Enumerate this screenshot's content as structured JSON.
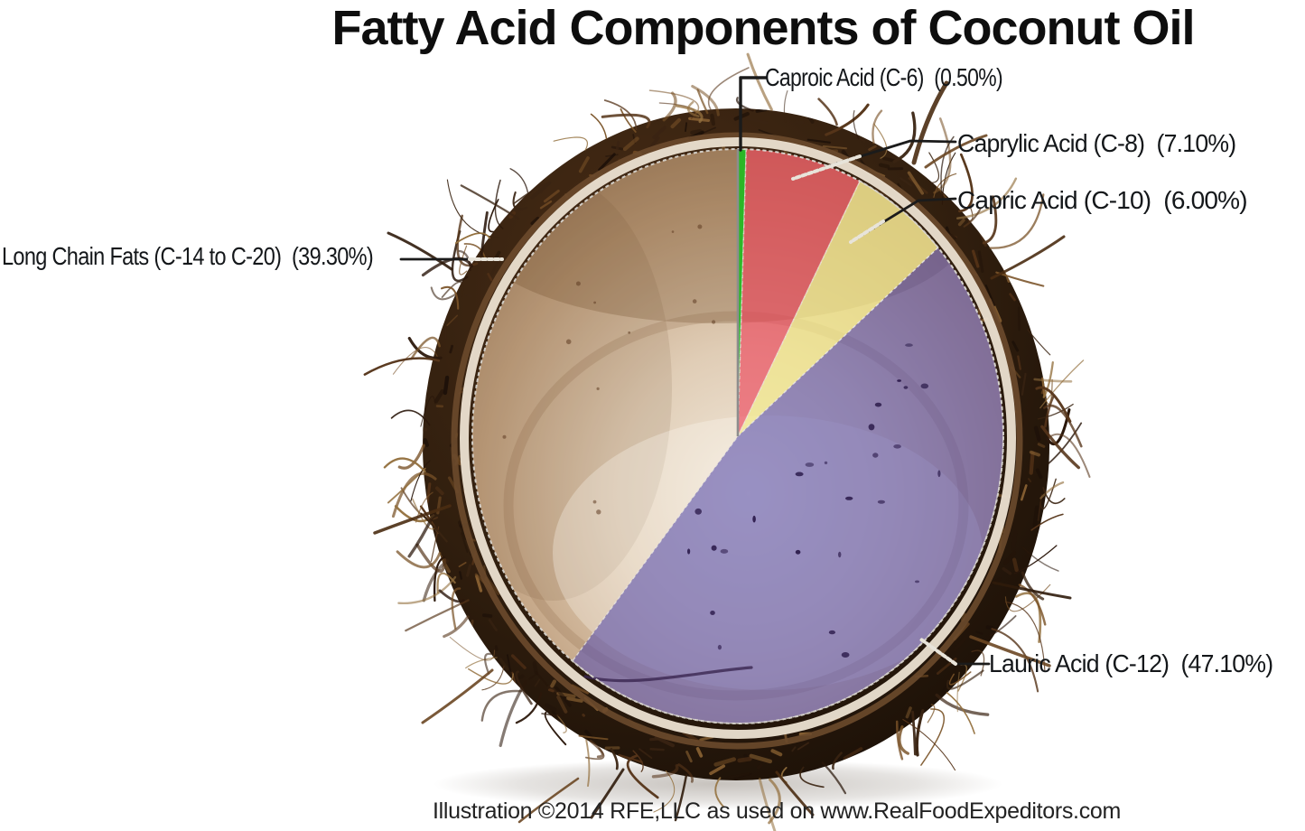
{
  "title": "Fatty Acid Components of Coconut Oil",
  "caption": "Illustration ©2014 RFE,LLC as used on www.RealFoodExpeditors.com",
  "labels": {
    "caproic": "Caproic Acid (C-6)  (0.50%)",
    "caprylic": "Caprylic Acid (C-8)  (7.10%)",
    "capric": "Capric Acid (C-10)  (6.00%)",
    "long_chain": "Long Chain Fats (C-14 to C-20)  (39.30%)",
    "lauric": "Lauric Acid (C-12)  (47.10%)"
  },
  "chart_data": {
    "type": "pie",
    "title": "Fatty Acid Components of Coconut Oil",
    "start_angle_deg": 0,
    "direction": "clockwise",
    "background": "photo of a halved coconut; pie slices are tinted overlays on the flesh",
    "slices": [
      {
        "key": "caproic",
        "name": "Caproic Acid",
        "carbons": "C-6",
        "percent": 0.5,
        "color": "#22bb22"
      },
      {
        "key": "caprylic",
        "name": "Caprylic Acid",
        "carbons": "C-8",
        "percent": 7.1,
        "color": "#ee4258"
      },
      {
        "key": "capric",
        "name": "Capric Acid",
        "carbons": "C-10",
        "percent": 6.0,
        "color": "#f2ea8e"
      },
      {
        "key": "lauric",
        "name": "Lauric Acid",
        "carbons": "C-12",
        "percent": 47.1,
        "color": "#564ead"
      },
      {
        "key": "long_chain",
        "name": "Long Chain Fats",
        "carbons": "C-14 to C-20",
        "percent": 39.3,
        "color": "#c9ab8c"
      }
    ],
    "colors": {
      "husk": "#2c1a0c",
      "shell_ring": "#ece2d2",
      "flesh": "#d6c0a8",
      "leader_line": "#1b1b1b"
    }
  }
}
